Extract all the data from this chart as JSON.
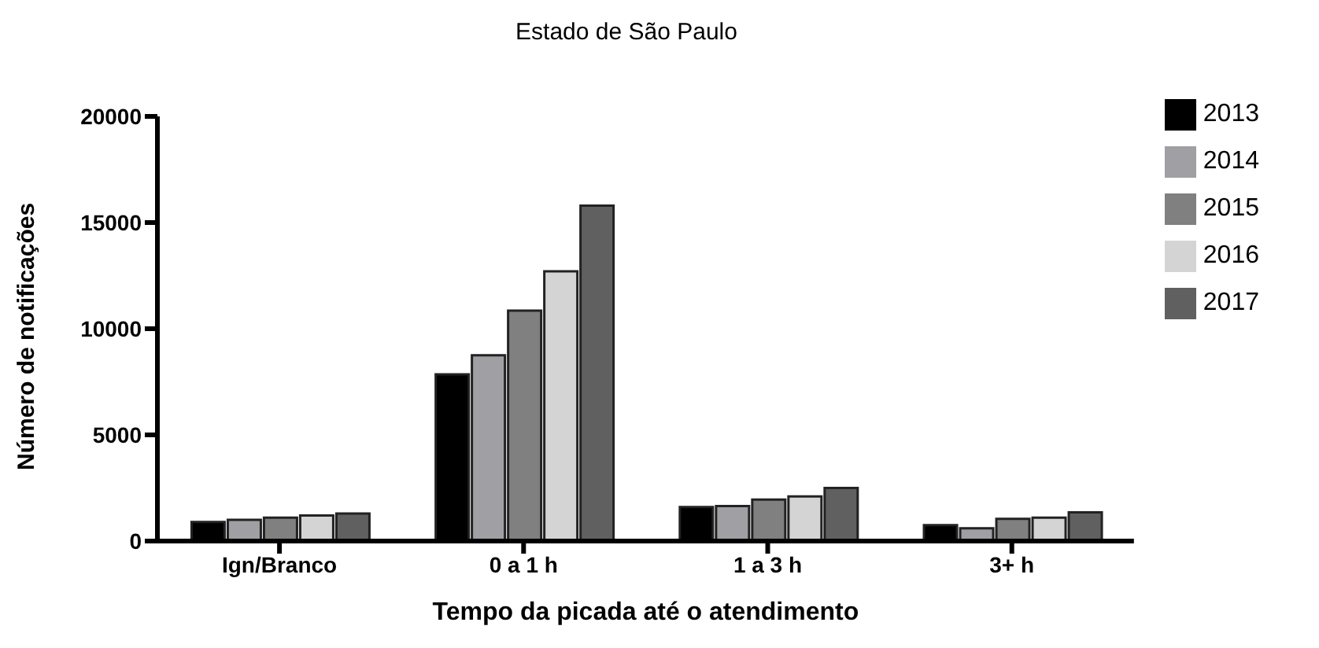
{
  "chart_data": {
    "type": "bar",
    "title": "Estado de São Paulo",
    "xlabel": "Tempo da picada até o atendimento",
    "ylabel": "Número de notificações",
    "categories": [
      "Ign/Branco",
      "0 a 1 h",
      "1 a 3 h",
      "3+ h"
    ],
    "series": [
      {
        "name": "2013",
        "color": "#000000",
        "values": [
          900,
          7850,
          1600,
          750
        ]
      },
      {
        "name": "2014",
        "color": "#a0a0a4",
        "values": [
          1000,
          8750,
          1650,
          600
        ]
      },
      {
        "name": "2015",
        "color": "#808080",
        "values": [
          1100,
          10850,
          1950,
          1050
        ]
      },
      {
        "name": "2016",
        "color": "#d4d4d4",
        "values": [
          1200,
          12700,
          2100,
          1100
        ]
      },
      {
        "name": "2017",
        "color": "#606060",
        "values": [
          1300,
          15800,
          2500,
          1350
        ]
      }
    ],
    "ylim": [
      0,
      20000
    ],
    "yticks": [
      0,
      5000,
      10000,
      15000,
      20000
    ],
    "grid": false,
    "legend": "right"
  }
}
